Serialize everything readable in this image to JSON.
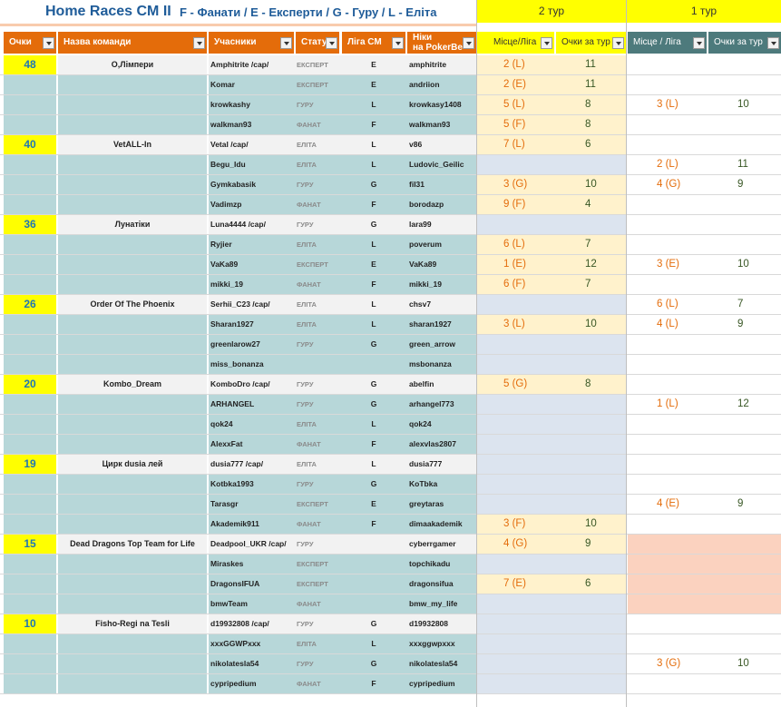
{
  "title": {
    "main": "Home Races CM II",
    "legend": "F - Фанати / E - Експерти /  G - Гуру /  L - Еліта"
  },
  "tours": {
    "round2": "2 тур",
    "round1": "1 тур"
  },
  "headers": {
    "points": "Очки",
    "team": "Назва команди",
    "members": "Учасники",
    "status": "Статус",
    "league": "Ліга СМ",
    "nick_line1": "Ніки",
    "nick_line2": "на PokerBe",
    "place2": "Місце/Ліга",
    "score2": "Очки за тур",
    "place1": "Місце / Ліга",
    "score1": "Очки за тур"
  },
  "colors": {
    "header_orange": "#e46c0a",
    "header_teal": "#4d7a7c",
    "yellow": "#ffff00",
    "team_teal": "#b7d7d9",
    "grey": "#f2f2f2",
    "round_yellow": "#fff2cc",
    "round_blue": "#dce4ef",
    "salmon": "#fbd2bf"
  },
  "rows": [
    {
      "points": "48",
      "team": "О,Лімпери",
      "member": "Amphitrite /cap/",
      "status": "ЕКСПЕРТ",
      "league": "E",
      "nick": "amphitrite",
      "p2": "2 (L)",
      "s2": "11",
      "p1": "",
      "s1": ""
    },
    {
      "points": "",
      "team": "",
      "member": "Komar",
      "status": "ЕКСПЕРТ",
      "league": "E",
      "nick": "andriion",
      "p2": "2 (E)",
      "s2": "11",
      "p1": "",
      "s1": ""
    },
    {
      "points": "",
      "team": "",
      "member": "krowkashy",
      "status": "ГУРУ",
      "league": "L",
      "nick": "krowkasy1408",
      "p2": "5 (L)",
      "s2": "8",
      "p1": "3 (L)",
      "s1": "10"
    },
    {
      "points": "",
      "team": "",
      "member": "walkman93",
      "status": "ФАНАТ",
      "league": "F",
      "nick": "walkman93",
      "p2": "5 (F)",
      "s2": "8",
      "p1": "",
      "s1": ""
    },
    {
      "points": "40",
      "team": "VetALL-In",
      "member": "Vetal /cap/",
      "status": "ЕЛІТА",
      "league": "L",
      "nick": "v86",
      "p2": "7 (L)",
      "s2": "6",
      "p1": "",
      "s1": ""
    },
    {
      "points": "",
      "team": "",
      "member": "Begu_Idu",
      "status": "ЕЛІТА",
      "league": "L",
      "nick": "Ludovic_Geilic",
      "p2": "",
      "s2": "",
      "p1": "2 (L)",
      "s1": "11"
    },
    {
      "points": "",
      "team": "",
      "member": "Gymkabasik",
      "status": "ГУРУ",
      "league": "G",
      "nick": "fil31",
      "p2": "3 (G)",
      "s2": "10",
      "p1": "4 (G)",
      "s1": "9"
    },
    {
      "points": "",
      "team": "",
      "member": "Vadimzp",
      "status": "ФАНАТ",
      "league": "F",
      "nick": " borodazp",
      "p2": "9 (F)",
      "s2": "4",
      "p1": "",
      "s1": ""
    },
    {
      "points": "36",
      "team": "Лунатіки",
      "member": "Luna4444 /cap/",
      "status": "ГУРУ",
      "league": "G",
      "nick": "lara99",
      "p2": "",
      "s2": "",
      "p1": "",
      "s1": ""
    },
    {
      "points": "",
      "team": "",
      "member": "Ryjier",
      "status": "ЕЛІТА",
      "league": "L",
      "nick": "poverum",
      "p2": "6 (L)",
      "s2": "7",
      "p1": "",
      "s1": ""
    },
    {
      "points": "",
      "team": "",
      "member": "VaKa89",
      "status": "ЕКСПЕРТ",
      "league": "E",
      "nick": "VaKa89",
      "p2": "1 (E)",
      "s2": "12",
      "p1": "3 (E)",
      "s1": "10"
    },
    {
      "points": "",
      "team": "",
      "member": "mikki_19",
      "status": "ФАНАТ",
      "league": "F",
      "nick": "mikki_19",
      "p2": "6 (F)",
      "s2": "7",
      "p1": "",
      "s1": ""
    },
    {
      "points": "26",
      "team": "Order Of The Phoenix",
      "member": "Serhii_C23 /cap/",
      "status": "ЕЛІТА",
      "league": "L",
      "nick": "chsv7",
      "p2": "",
      "s2": "",
      "p1": "6 (L)",
      "s1": "7"
    },
    {
      "points": "",
      "team": "",
      "member": "Sharan1927",
      "status": "ЕЛІТА",
      "league": "L",
      "nick": "sharan1927",
      "p2": "3 (L)",
      "s2": "10",
      "p1": "4 (L)",
      "s1": "9"
    },
    {
      "points": "",
      "team": "",
      "member": "greenlarow27",
      "status": "ГУРУ",
      "league": "G",
      "nick": "green_arrow",
      "p2": "",
      "s2": "",
      "p1": "",
      "s1": ""
    },
    {
      "points": "",
      "team": "",
      "member": "miss_bonanza",
      "status": "",
      "league": "",
      "nick": "msbonanza",
      "p2": "",
      "s2": "",
      "p1": "",
      "s1": ""
    },
    {
      "points": "20",
      "team": "Kombo_Dream",
      "member": "KomboDro /cap/",
      "status": "ГУРУ",
      "league": "G",
      "nick": "abelfin",
      "p2": "5 (G)",
      "s2": "8",
      "p1": "",
      "s1": ""
    },
    {
      "points": "",
      "team": "",
      "member": "ARHANGEL",
      "status": "ГУРУ",
      "league": "G",
      "nick": "arhangel773",
      "p2": "",
      "s2": "",
      "p1": "1 (L)",
      "s1": "12"
    },
    {
      "points": "",
      "team": "",
      "member": "qok24",
      "status": "ЕЛІТА",
      "league": "L",
      "nick": "qok24",
      "p2": "",
      "s2": "",
      "p1": "",
      "s1": ""
    },
    {
      "points": "",
      "team": "",
      "member": "AlexxFat",
      "status": "ФАНАТ",
      "league": "F",
      "nick": "alexvlas2807",
      "p2": "",
      "s2": "",
      "p1": "",
      "s1": ""
    },
    {
      "points": "19",
      "team": "Цирк dusia лей",
      "member": "dusia777 /cap/",
      "status": "ЕЛІТА",
      "league": "L",
      "nick": "dusia777",
      "p2": "",
      "s2": "",
      "p1": "",
      "s1": ""
    },
    {
      "points": "",
      "team": "",
      "member": "Kotbka1993",
      "status": "ГУРУ",
      "league": "G",
      "nick": "KoTbka",
      "p2": "",
      "s2": "",
      "p1": "",
      "s1": ""
    },
    {
      "points": "",
      "team": "",
      "member": "Tarasgr",
      "status": "ЕКСПЕРТ",
      "league": "E",
      "nick": "greytaras",
      "p2": "",
      "s2": "",
      "p1": "4 (E)",
      "s1": "9"
    },
    {
      "points": "",
      "team": "",
      "member": "Akademik911",
      "status": "ФАНАТ",
      "league": "F",
      "nick": "dimaakademik",
      "p2": "3 (F)",
      "s2": "10",
      "p1": "",
      "s1": ""
    },
    {
      "points": "15",
      "team": "Dead Dragons Top Team for Life",
      "member": "Deadpool_UKR /cap/",
      "status": "ГУРУ",
      "league": "",
      "nick": "cyberrgamer",
      "p2": "4 (G)",
      "s2": "9",
      "p1": "",
      "s1": ""
    },
    {
      "points": "",
      "team": "",
      "member": "Miraskes",
      "status": "ЕКСПЕРТ",
      "league": "",
      "nick": "topchikadu",
      "p2": "",
      "s2": "",
      "p1": "",
      "s1": ""
    },
    {
      "points": "",
      "team": "",
      "member": "DragonsIFUA",
      "status": "ЕКСПЕРТ",
      "league": "",
      "nick": "dragonsifua",
      "p2": "7 (E)",
      "s2": "6",
      "p1": "",
      "s1": ""
    },
    {
      "points": "",
      "team": "",
      "member": "bmwTeam",
      "status": "ФАНАТ",
      "league": "",
      "nick": "bmw_my_life",
      "p2": "",
      "s2": "",
      "p1": "",
      "s1": ""
    },
    {
      "points": "10",
      "team": "Fisho-Regi na Tesli",
      "member": "d19932808 /cap/",
      "status": "ГУРУ",
      "league": "G",
      "nick": "d19932808",
      "p2": "",
      "s2": "",
      "p1": "",
      "s1": ""
    },
    {
      "points": "",
      "team": "",
      "member": "xxxGGWPxxx",
      "status": "ЕЛІТА",
      "league": "L",
      "nick": "xxxggwpxxx",
      "p2": "",
      "s2": "",
      "p1": "",
      "s1": ""
    },
    {
      "points": "",
      "team": "",
      "member": "nikolatesla54",
      "status": "ГУРУ",
      "league": "G",
      "nick": "nikolatesla54",
      "p2": "",
      "s2": "",
      "p1": "3 (G)",
      "s1": "10"
    },
    {
      "points": "",
      "team": "",
      "member": "cypripedium",
      "status": "ФАНАТ",
      "league": "F",
      "nick": "cypripedium",
      "p2": "",
      "s2": "",
      "p1": "",
      "s1": ""
    }
  ]
}
